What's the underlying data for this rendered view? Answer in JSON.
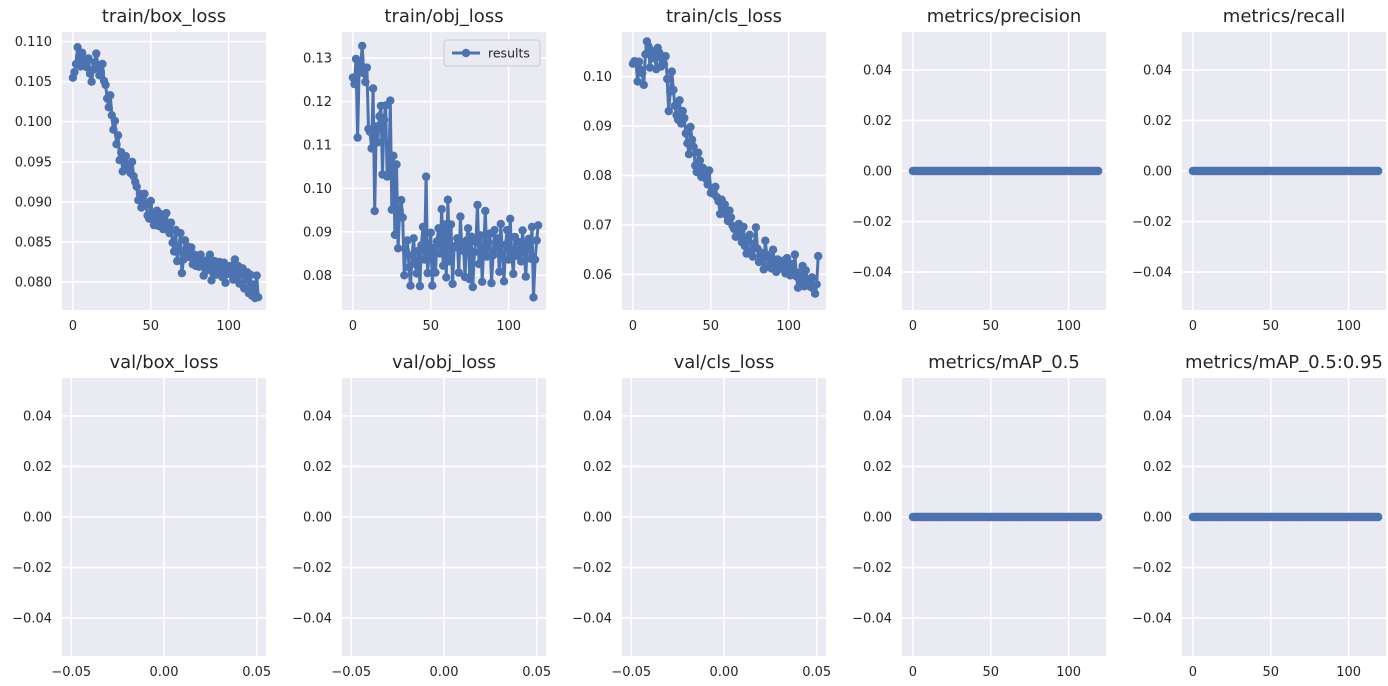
{
  "chart_data": [
    {
      "type": "line",
      "title": "train/box_loss",
      "x_ticks": [
        "0",
        "50",
        "100"
      ],
      "y_ticks": [
        "0.080",
        "0.085",
        "0.090",
        "0.095",
        "0.100",
        "0.105",
        "0.110"
      ],
      "xlim": [
        -7,
        124
      ],
      "ylim": [
        0.0765,
        0.1112
      ],
      "series": [
        {
          "name": "results",
          "x": [
            0,
            1,
            2,
            3,
            4,
            5,
            6,
            7,
            8,
            9,
            10,
            11,
            12,
            13,
            14,
            15,
            16,
            17,
            18,
            19,
            20,
            21,
            22,
            23,
            24,
            25,
            26,
            27,
            28,
            29,
            30,
            31,
            32,
            33,
            34,
            35,
            36,
            37,
            38,
            39,
            40,
            41,
            42,
            43,
            44,
            45,
            46,
            47,
            48,
            49,
            50,
            51,
            52,
            53,
            54,
            55,
            56,
            57,
            58,
            59,
            60,
            61,
            62,
            63,
            64,
            65,
            66,
            67,
            68,
            69,
            70,
            71,
            72,
            73,
            74,
            75,
            76,
            77,
            78,
            79,
            80,
            81,
            82,
            83,
            84,
            85,
            86,
            87,
            88,
            89,
            90,
            91,
            92,
            93,
            94,
            95,
            96,
            97,
            98,
            99,
            100,
            101,
            102,
            103,
            104,
            105,
            106,
            107,
            108,
            109,
            110,
            111,
            112,
            113,
            114,
            115,
            116,
            117,
            118,
            119
          ],
          "y": [
            0.1055,
            0.1062,
            0.1072,
            0.1093,
            0.1081,
            0.1069,
            0.1086,
            0.1078,
            0.1073,
            0.1068,
            0.1079,
            0.106,
            0.105,
            0.1065,
            0.1074,
            0.1085,
            0.1071,
            0.1058,
            0.1062,
            0.1072,
            0.1051,
            0.1046,
            0.1029,
            0.1018,
            0.1033,
            0.1008,
            0.099,
            0.1001,
            0.0972,
            0.0983,
            0.0952,
            0.0962,
            0.0938,
            0.095,
            0.0957,
            0.0941,
            0.0945,
            0.0936,
            0.095,
            0.0932,
            0.0925,
            0.0919,
            0.0902,
            0.091,
            0.0893,
            0.0906,
            0.091,
            0.0896,
            0.0883,
            0.0879,
            0.0901,
            0.0886,
            0.0871,
            0.0877,
            0.0889,
            0.087,
            0.0885,
            0.088,
            0.0866,
            0.0873,
            0.0886,
            0.087,
            0.0861,
            0.0874,
            0.0849,
            0.0838,
            0.0865,
            0.0826,
            0.0842,
            0.0861,
            0.0811,
            0.0828,
            0.0852,
            0.0836,
            0.0844,
            0.0831,
            0.0843,
            0.0822,
            0.0834,
            0.082,
            0.0829,
            0.0819,
            0.0834,
            0.0825,
            0.0808,
            0.082,
            0.0827,
            0.0815,
            0.0834,
            0.0802,
            0.0822,
            0.0826,
            0.0809,
            0.0818,
            0.0825,
            0.0813,
            0.0806,
            0.0824,
            0.0799,
            0.0816,
            0.081,
            0.082,
            0.0812,
            0.0803,
            0.0828,
            0.0805,
            0.082,
            0.0798,
            0.0811,
            0.0817,
            0.0792,
            0.0805,
            0.0812,
            0.0786,
            0.0809,
            0.0783,
            0.0797,
            0.078,
            0.0808,
            0.0781
          ]
        }
      ]
    },
    {
      "type": "line",
      "title": "train/obj_loss",
      "legend": "results",
      "x_ticks": [
        "0",
        "50",
        "100"
      ],
      "y_ticks": [
        "0.08",
        "0.09",
        "0.10",
        "0.11",
        "0.12",
        "0.13"
      ],
      "xlim": [
        -7,
        124
      ],
      "ylim": [
        0.072,
        0.136
      ],
      "series": [
        {
          "name": "results",
          "x": [
            0,
            1,
            2,
            3,
            4,
            5,
            6,
            7,
            8,
            9,
            10,
            11,
            12,
            13,
            14,
            15,
            16,
            17,
            18,
            19,
            20,
            21,
            22,
            23,
            24,
            25,
            26,
            27,
            28,
            29,
            30,
            31,
            32,
            33,
            34,
            35,
            36,
            37,
            38,
            39,
            40,
            41,
            42,
            43,
            44,
            45,
            46,
            47,
            48,
            49,
            50,
            51,
            52,
            53,
            54,
            55,
            56,
            57,
            58,
            59,
            60,
            61,
            62,
            63,
            64,
            65,
            66,
            67,
            68,
            69,
            70,
            71,
            72,
            73,
            74,
            75,
            76,
            77,
            78,
            79,
            80,
            81,
            82,
            83,
            84,
            85,
            86,
            87,
            88,
            89,
            90,
            91,
            92,
            93,
            94,
            95,
            96,
            97,
            98,
            99,
            100,
            101,
            102,
            103,
            104,
            105,
            106,
            107,
            108,
            109,
            110,
            111,
            112,
            113,
            114,
            115,
            116,
            117,
            118,
            119
          ],
          "y": [
            0.1255,
            0.124,
            0.1298,
            0.1117,
            0.127,
            0.1284,
            0.1328,
            0.1265,
            0.1245,
            0.1278,
            0.1137,
            0.113,
            0.1092,
            0.123,
            0.0948,
            0.1143,
            0.1106,
            0.1166,
            0.119,
            0.1032,
            0.1158,
            0.1191,
            0.1027,
            0.103,
            0.1202,
            0.0951,
            0.1075,
            0.0893,
            0.1055,
            0.0862,
            0.0949,
            0.0973,
            0.0933,
            0.08,
            0.0857,
            0.088,
            0.0818,
            0.0776,
            0.0846,
            0.0885,
            0.0826,
            0.0804,
            0.0856,
            0.0775,
            0.0869,
            0.0911,
            0.0836,
            0.1027,
            0.0805,
            0.0849,
            0.0898,
            0.0776,
            0.0863,
            0.0806,
            0.0878,
            0.0908,
            0.085,
            0.0952,
            0.0822,
            0.0917,
            0.0795,
            0.0974,
            0.0832,
            0.0917,
            0.078,
            0.0864,
            0.0868,
            0.0885,
            0.0806,
            0.0935,
            0.0857,
            0.0867,
            0.0796,
            0.088,
            0.0908,
            0.0791,
            0.0889,
            0.0773,
            0.0853,
            0.0877,
            0.0962,
            0.0826,
            0.0892,
            0.0785,
            0.0864,
            0.0948,
            0.0843,
            0.0876,
            0.0896,
            0.0782,
            0.0846,
            0.0904,
            0.0861,
            0.0885,
            0.0808,
            0.0918,
            0.0847,
            0.0786,
            0.087,
            0.0904,
            0.0836,
            0.093,
            0.0852,
            0.0803,
            0.0888,
            0.0845,
            0.0855,
            0.0876,
            0.0832,
            0.0903,
            0.0857,
            0.0797,
            0.0872,
            0.0884,
            0.0838,
            0.0911,
            0.0749,
            0.0836,
            0.088,
            0.0915
          ]
        }
      ]
    },
    {
      "type": "line",
      "title": "train/cls_loss",
      "x_ticks": [
        "0",
        "50",
        "100"
      ],
      "y_ticks": [
        "0.06",
        "0.07",
        "0.08",
        "0.09",
        "0.10"
      ],
      "xlim": [
        -7,
        124
      ],
      "ylim": [
        0.0528,
        0.109
      ],
      "series": [
        {
          "name": "results",
          "x": [
            0,
            1,
            2,
            3,
            4,
            5,
            6,
            7,
            8,
            9,
            10,
            11,
            12,
            13,
            14,
            15,
            16,
            17,
            18,
            19,
            20,
            21,
            22,
            23,
            24,
            25,
            26,
            27,
            28,
            29,
            30,
            31,
            32,
            33,
            34,
            35,
            36,
            37,
            38,
            39,
            40,
            41,
            42,
            43,
            44,
            45,
            46,
            47,
            48,
            49,
            50,
            51,
            52,
            53,
            54,
            55,
            56,
            57,
            58,
            59,
            60,
            61,
            62,
            63,
            64,
            65,
            66,
            67,
            68,
            69,
            70,
            71,
            72,
            73,
            74,
            75,
            76,
            77,
            78,
            79,
            80,
            81,
            82,
            83,
            84,
            85,
            86,
            87,
            88,
            89,
            90,
            91,
            92,
            93,
            94,
            95,
            96,
            97,
            98,
            99,
            100,
            101,
            102,
            103,
            104,
            105,
            106,
            107,
            108,
            109,
            110,
            111,
            112,
            113,
            114,
            115,
            116,
            117,
            118,
            119
          ],
          "y": [
            0.1026,
            0.1031,
            0.1028,
            0.099,
            0.103,
            0.1014,
            0.1007,
            0.0983,
            0.1045,
            0.1071,
            0.1061,
            0.1018,
            0.1052,
            0.1037,
            0.1041,
            0.1015,
            0.1058,
            0.1048,
            0.102,
            0.1035,
            0.1025,
            0.1041,
            0.0995,
            0.093,
            0.097,
            0.101,
            0.0973,
            0.0941,
            0.0922,
            0.0913,
            0.0952,
            0.0905,
            0.093,
            0.0916,
            0.0885,
            0.0865,
            0.0843,
            0.0898,
            0.0872,
            0.0858,
            0.082,
            0.0807,
            0.0846,
            0.083,
            0.0797,
            0.0815,
            0.0805,
            0.0793,
            0.0782,
            0.081,
            0.0765,
            0.0773,
            0.0762,
            0.0777,
            0.0756,
            0.0748,
            0.0722,
            0.0751,
            0.0734,
            0.0741,
            0.072,
            0.0708,
            0.0729,
            0.0715,
            0.0698,
            0.0692,
            0.0676,
            0.0687,
            0.0702,
            0.0679,
            0.0665,
            0.0696,
            0.0657,
            0.0642,
            0.067,
            0.068,
            0.0648,
            0.0636,
            0.0662,
            0.0695,
            0.0652,
            0.0625,
            0.0644,
            0.063,
            0.061,
            0.0668,
            0.064,
            0.0618,
            0.0634,
            0.0612,
            0.065,
            0.062,
            0.0605,
            0.063,
            0.0622,
            0.0614,
            0.0611,
            0.0628,
            0.0602,
            0.0633,
            0.0611,
            0.0598,
            0.0621,
            0.0605,
            0.064,
            0.0596,
            0.0573,
            0.0604,
            0.0587,
            0.0617,
            0.0576,
            0.0608,
            0.059,
            0.0583,
            0.0575,
            0.0594,
            0.0571,
            0.0561,
            0.058,
            0.0637
          ]
        }
      ]
    },
    {
      "type": "line",
      "title": "metrics/precision",
      "x_ticks": [
        "0",
        "50",
        "100"
      ],
      "y_ticks": [
        "−0.04",
        "−0.02",
        "0.00",
        "0.02",
        "0.04"
      ],
      "xlim": [
        -7,
        124
      ],
      "ylim": [
        -0.055,
        0.055
      ],
      "series": [
        {
          "name": "results",
          "x_start": 0,
          "x_end": 119,
          "constant": 0.0
        }
      ]
    },
    {
      "type": "line",
      "title": "metrics/recall",
      "x_ticks": [
        "0",
        "50",
        "100"
      ],
      "y_ticks": [
        "−0.04",
        "−0.02",
        "0.00",
        "0.02",
        "0.04"
      ],
      "xlim": [
        -7,
        124
      ],
      "ylim": [
        -0.055,
        0.055
      ],
      "series": [
        {
          "name": "results",
          "x_start": 0,
          "x_end": 119,
          "constant": 0.0
        }
      ]
    },
    {
      "type": "line",
      "title": "val/box_loss",
      "x_ticks": [
        "−0.05",
        "0.00",
        "0.05"
      ],
      "y_ticks": [
        "−0.04",
        "−0.02",
        "0.00",
        "0.02",
        "0.04"
      ],
      "xlim": [
        -0.055,
        0.055
      ],
      "ylim": [
        -0.055,
        0.055
      ],
      "series": []
    },
    {
      "type": "line",
      "title": "val/obj_loss",
      "x_ticks": [
        "−0.05",
        "0.00",
        "0.05"
      ],
      "y_ticks": [
        "−0.04",
        "−0.02",
        "0.00",
        "0.02",
        "0.04"
      ],
      "xlim": [
        -0.055,
        0.055
      ],
      "ylim": [
        -0.055,
        0.055
      ],
      "series": []
    },
    {
      "type": "line",
      "title": "val/cls_loss",
      "x_ticks": [
        "−0.05",
        "0.00",
        "0.05"
      ],
      "y_ticks": [
        "−0.04",
        "−0.02",
        "0.00",
        "0.02",
        "0.04"
      ],
      "xlim": [
        -0.055,
        0.055
      ],
      "ylim": [
        -0.055,
        0.055
      ],
      "series": []
    },
    {
      "type": "line",
      "title": "metrics/mAP_0.5",
      "x_ticks": [
        "0",
        "50",
        "100"
      ],
      "y_ticks": [
        "−0.04",
        "−0.02",
        "0.00",
        "0.02",
        "0.04"
      ],
      "xlim": [
        -7,
        124
      ],
      "ylim": [
        -0.055,
        0.055
      ],
      "series": [
        {
          "name": "results",
          "x_start": 0,
          "x_end": 119,
          "constant": 0.0
        }
      ]
    },
    {
      "type": "line",
      "title": "metrics/mAP_0.5:0.95",
      "x_ticks": [
        "0",
        "50",
        "100"
      ],
      "y_ticks": [
        "−0.04",
        "−0.02",
        "0.00",
        "0.02",
        "0.04"
      ],
      "xlim": [
        -7,
        124
      ],
      "ylim": [
        -0.055,
        0.055
      ],
      "series": [
        {
          "name": "results",
          "x_start": 0,
          "x_end": 119,
          "constant": 0.0
        }
      ]
    }
  ],
  "colors": {
    "background": "#eaeaf2",
    "grid": "#ffffff",
    "series": "#4c72b0",
    "text": "#262626"
  }
}
